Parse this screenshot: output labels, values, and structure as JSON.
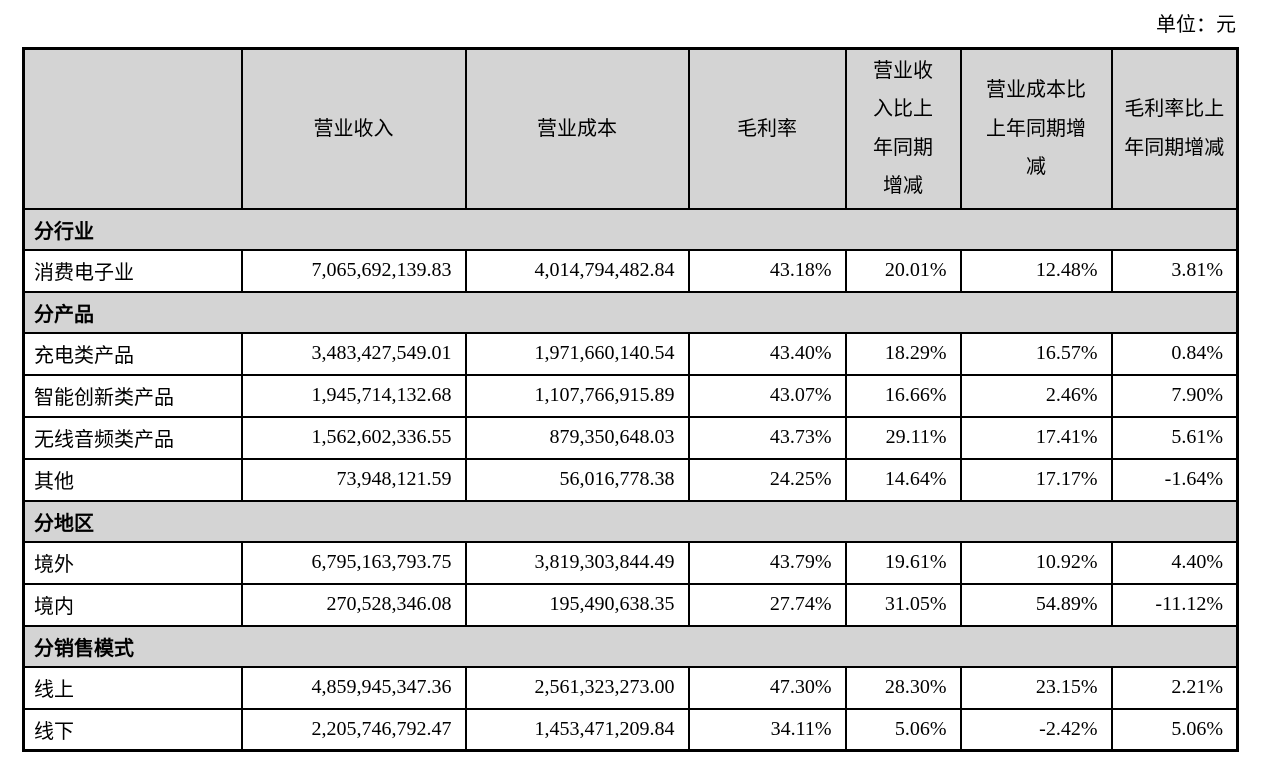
{
  "unit_label": "单位：元",
  "table": {
    "columns": [
      "",
      "营业收入",
      "营业成本",
      "毛利率",
      "营业收入比上年同期增减",
      "营业成本比上年同期增减",
      "毛利率比上年同期增减"
    ],
    "sections": [
      {
        "title": "分行业",
        "rows": [
          {
            "label": "消费电子业",
            "values": [
              "7,065,692,139.83",
              "4,014,794,482.84",
              "43.18%",
              "20.01%",
              "12.48%",
              "3.81%"
            ]
          }
        ]
      },
      {
        "title": "分产品",
        "rows": [
          {
            "label": "充电类产品",
            "values": [
              "3,483,427,549.01",
              "1,971,660,140.54",
              "43.40%",
              "18.29%",
              "16.57%",
              "0.84%"
            ]
          },
          {
            "label": "智能创新类产品",
            "values": [
              "1,945,714,132.68",
              "1,107,766,915.89",
              "43.07%",
              "16.66%",
              "2.46%",
              "7.90%"
            ]
          },
          {
            "label": "无线音频类产品",
            "values": [
              "1,562,602,336.55",
              "879,350,648.03",
              "43.73%",
              "29.11%",
              "17.41%",
              "5.61%"
            ]
          },
          {
            "label": "其他",
            "values": [
              "73,948,121.59",
              "56,016,778.38",
              "24.25%",
              "14.64%",
              "17.17%",
              "-1.64%"
            ]
          }
        ]
      },
      {
        "title": "分地区",
        "rows": [
          {
            "label": "境外",
            "values": [
              "6,795,163,793.75",
              "3,819,303,844.49",
              "43.79%",
              "19.61%",
              "10.92%",
              "4.40%"
            ]
          },
          {
            "label": "境内",
            "values": [
              "270,528,346.08",
              "195,490,638.35",
              "27.74%",
              "31.05%",
              "54.89%",
              "-11.12%"
            ]
          }
        ]
      },
      {
        "title": "分销售模式",
        "rows": [
          {
            "label": "线上",
            "values": [
              "4,859,945,347.36",
              "2,561,323,273.00",
              "47.30%",
              "28.30%",
              "23.15%",
              "2.21%"
            ]
          },
          {
            "label": "线下",
            "values": [
              "2,205,746,792.47",
              "1,453,471,209.84",
              "34.11%",
              "5.06%",
              "-2.42%",
              "5.06%"
            ]
          }
        ]
      }
    ]
  }
}
